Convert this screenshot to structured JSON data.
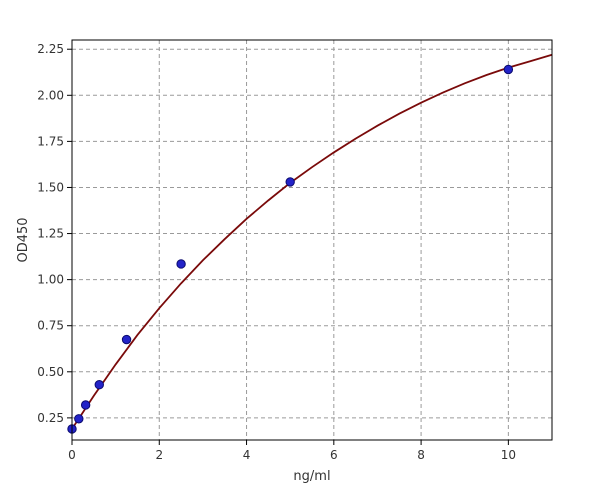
{
  "chart_data": {
    "type": "scatter",
    "title": "",
    "xlabel": "ng/ml",
    "ylabel": "OD450",
    "xlim": [
      0,
      11
    ],
    "ylim": [
      0.13,
      2.3
    ],
    "xticks": [
      0,
      2,
      4,
      6,
      8,
      10
    ],
    "xtick_labels": [
      "0",
      "2",
      "4",
      "6",
      "8",
      "10"
    ],
    "yticks": [
      0.25,
      0.5,
      0.75,
      1.0,
      1.25,
      1.5,
      1.75,
      2.0,
      2.25
    ],
    "ytick_labels": [
      "0.25",
      "0.50",
      "0.75",
      "1.00",
      "1.25",
      "1.50",
      "1.75",
      "2.00",
      "2.25"
    ],
    "grid": true,
    "series": [
      {
        "kind": "points",
        "x": [
          0,
          0.156,
          0.313,
          0.625,
          1.25,
          2.5,
          5,
          10
        ],
        "y": [
          0.19,
          0.245,
          0.32,
          0.43,
          0.675,
          1.085,
          1.53,
          2.14
        ]
      },
      {
        "kind": "fitted-curve",
        "x": [
          0,
          0.25,
          0.5,
          0.75,
          1,
          1.5,
          2,
          2.5,
          3,
          3.5,
          4,
          4.5,
          5,
          5.5,
          6,
          6.5,
          7,
          7.5,
          8,
          8.5,
          9,
          9.5,
          10,
          10.5,
          11
        ],
        "y": [
          0.19,
          0.28,
          0.37,
          0.455,
          0.54,
          0.7,
          0.845,
          0.98,
          1.105,
          1.22,
          1.33,
          1.43,
          1.525,
          1.61,
          1.69,
          1.765,
          1.835,
          1.9,
          1.96,
          2.015,
          2.065,
          2.11,
          2.15,
          2.185,
          2.22
        ]
      }
    ],
    "colors": {
      "curve": "#7a0a0a",
      "point_fill": "#2323c8",
      "point_stroke": "#0a0a6e",
      "grid": "#9a9a9a",
      "axis": "#000000"
    }
  }
}
